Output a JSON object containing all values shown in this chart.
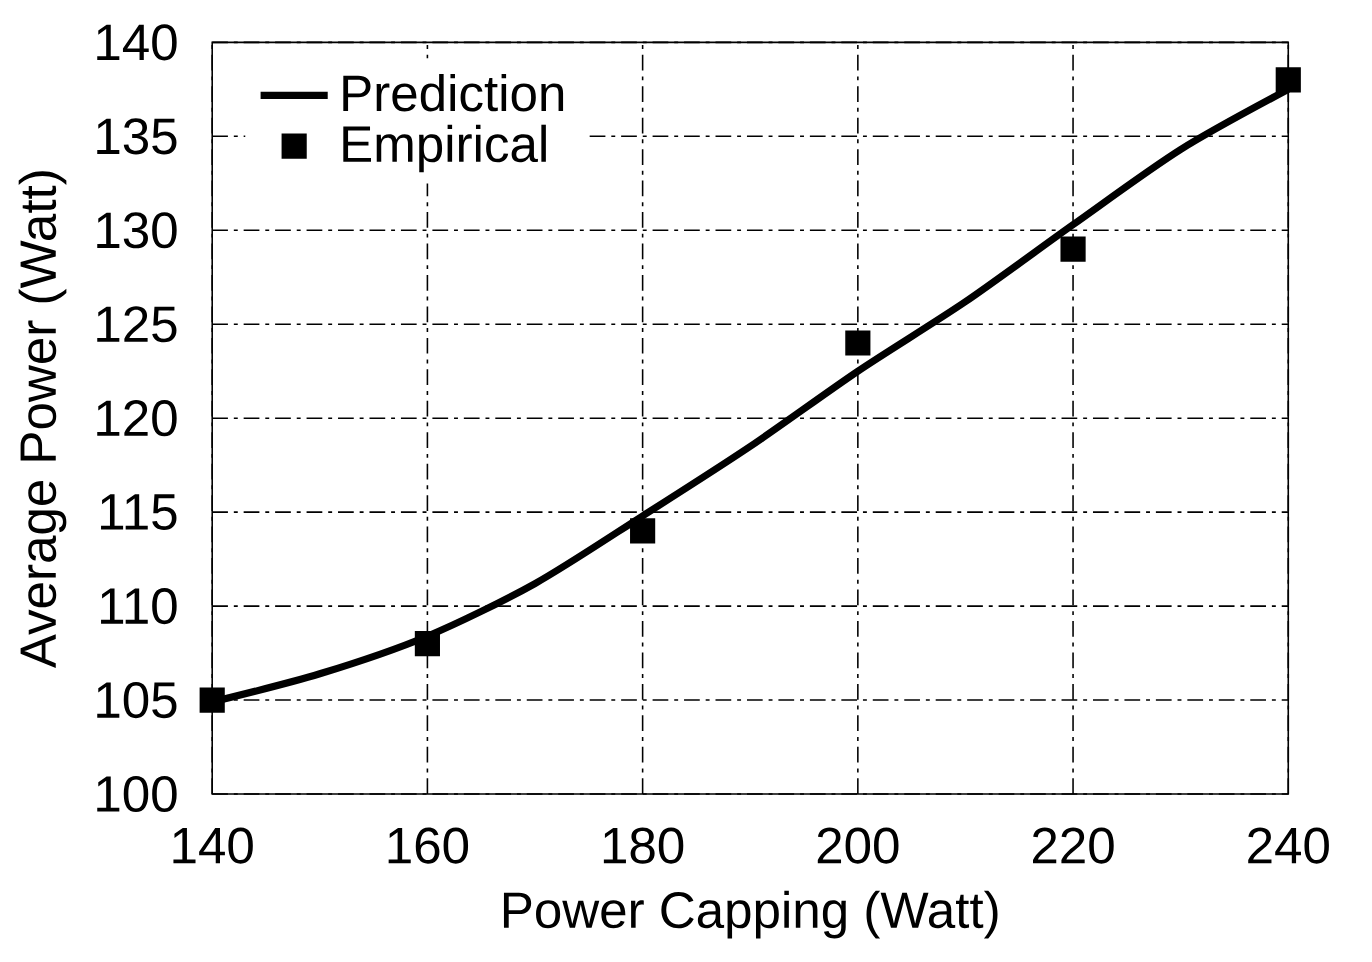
{
  "chart_data": {
    "type": "line",
    "xlabel": "Power Capping (Watt)",
    "ylabel": "Average Power (Watt)",
    "xlim": [
      140,
      240
    ],
    "ylim": [
      100,
      140
    ],
    "xticks": [
      140,
      160,
      180,
      200,
      220,
      240
    ],
    "yticks": [
      100,
      105,
      110,
      115,
      120,
      125,
      130,
      135,
      140
    ],
    "grid": true,
    "legend": "top left",
    "series": [
      {
        "name": "Prediction",
        "color": "#000000",
        "marker": "none",
        "x": [
          140,
          150,
          160,
          170,
          180,
          190,
          200,
          210,
          220,
          230,
          240
        ],
        "values": [
          104.9,
          106.4,
          108.4,
          111.2,
          114.8,
          118.5,
          122.5,
          126.2,
          130.3,
          134.3,
          137.5
        ]
      },
      {
        "name": "Empirical",
        "color": "#000000",
        "type": "scatter",
        "marker": "square",
        "x": [
          140,
          160,
          180,
          200,
          220,
          240
        ],
        "values": [
          105,
          108,
          114,
          124,
          129,
          138
        ]
      }
    ]
  }
}
